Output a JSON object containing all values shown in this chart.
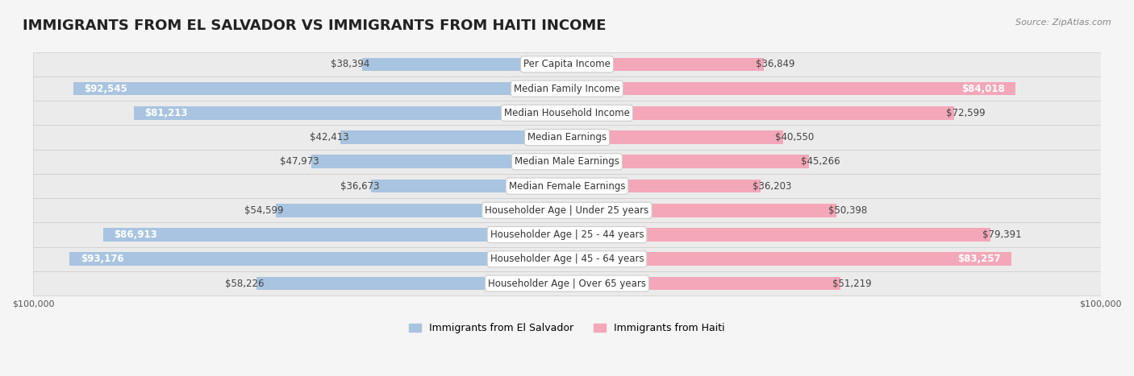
{
  "title": "IMMIGRANTS FROM EL SALVADOR VS IMMIGRANTS FROM HAITI INCOME",
  "source": "Source: ZipAtlas.com",
  "categories": [
    "Per Capita Income",
    "Median Family Income",
    "Median Household Income",
    "Median Earnings",
    "Median Male Earnings",
    "Median Female Earnings",
    "Householder Age | Under 25 years",
    "Householder Age | 25 - 44 years",
    "Householder Age | 45 - 64 years",
    "Householder Age | Over 65 years"
  ],
  "el_salvador_values": [
    38394,
    92545,
    81213,
    42413,
    47973,
    36673,
    54599,
    86913,
    93176,
    58226
  ],
  "haiti_values": [
    36849,
    84018,
    72599,
    40550,
    45266,
    36203,
    50398,
    79391,
    83257,
    51219
  ],
  "max_value": 100000,
  "el_salvador_color": "#a8c4e0",
  "el_salvador_color_dark": "#7bafd4",
  "haiti_color": "#f4a7b9",
  "haiti_color_dark": "#e87fa0",
  "bg_color": "#f5f5f5",
  "row_bg_color": "#ebebeb",
  "label_box_color": "#ffffff",
  "label_box_color_dark": "#e8e8e8",
  "title_fontsize": 13,
  "source_fontsize": 8,
  "legend_fontsize": 9,
  "value_fontsize": 8.5,
  "category_fontsize": 8.5,
  "axis_label_fontsize": 8
}
